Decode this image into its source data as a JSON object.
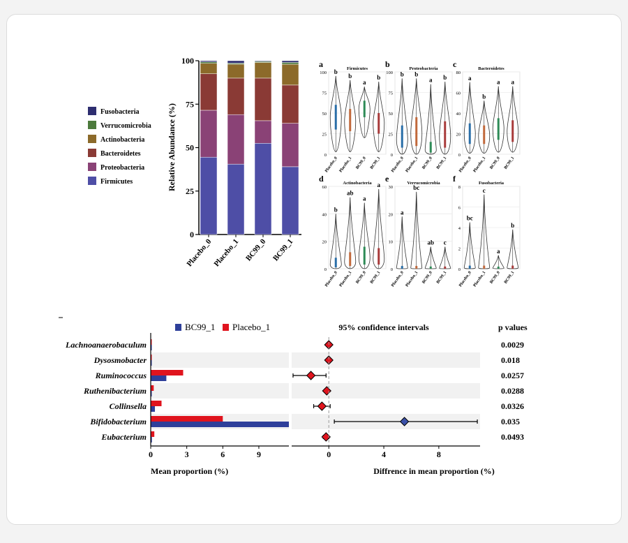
{
  "chart_data": [
    {
      "panel": "stacked",
      "type": "bar",
      "ylabel": "Relative Abundance (%)",
      "ylim": [
        0,
        100
      ],
      "yticks": [
        0,
        25,
        50,
        75,
        100
      ],
      "categories": [
        "Placebo_0",
        "Placebo_1",
        "BC99_0",
        "BC99_1"
      ],
      "series": [
        {
          "name": "Firmicutes",
          "color": "#4e4ea6",
          "values": [
            44.5,
            40.5,
            52.5,
            39
          ]
        },
        {
          "name": "Proteobacteria",
          "color": "#8a4276",
          "values": [
            27,
            28.5,
            13,
            25
          ]
        },
        {
          "name": "Bacteroidetes",
          "color": "#8a3a35",
          "values": [
            21,
            21,
            24.5,
            22
          ]
        },
        {
          "name": "Actinobacteria",
          "color": "#8c6a2a",
          "values": [
            6,
            8,
            9,
            12
          ]
        },
        {
          "name": "Verrucomicrobia",
          "color": "#4c7a3c",
          "values": [
            0.8,
            0.6,
            0.6,
            1
          ]
        },
        {
          "name": "Fusobacteria",
          "color": "#2e2e70",
          "values": [
            0.7,
            1.4,
            0.4,
            1
          ]
        }
      ],
      "legend_order": [
        "Fusobacteria",
        "Verrucomicrobia",
        "Actinobacteria",
        "Bacteroidetes",
        "Proteobacteria",
        "Firmicutes"
      ]
    },
    {
      "panel": "violin",
      "type": "violin",
      "categories": [
        "Placebo_0",
        "Placebo_1",
        "BC99_0",
        "BC99_1"
      ],
      "series_colors": [
        "#2a6fa8",
        "#c1693b",
        "#2e8b57",
        "#a83a3a"
      ],
      "subplots": [
        {
          "letter": "a",
          "title": "Firmicutes",
          "ylim": [
            0,
            100
          ],
          "yticks": [
            0,
            25,
            50,
            75,
            100
          ],
          "letters": [
            "b",
            "b",
            "a",
            "b"
          ],
          "medians": [
            45,
            40,
            55,
            38
          ],
          "q1": [
            30,
            28,
            45,
            25
          ],
          "q3": [
            60,
            55,
            65,
            50
          ],
          "max": [
            95,
            90,
            82,
            88
          ],
          "min": [
            3,
            3,
            20,
            3
          ]
        },
        {
          "letter": "b",
          "title": "Proteobacteria",
          "ylim": [
            0,
            100
          ],
          "yticks": [
            0,
            25,
            50,
            75,
            100
          ],
          "letters": [
            "b",
            "b",
            "a",
            "b"
          ],
          "medians": [
            18,
            25,
            5,
            22
          ],
          "q1": [
            8,
            10,
            2,
            8
          ],
          "q3": [
            35,
            45,
            15,
            40
          ],
          "max": [
            92,
            92,
            85,
            88
          ],
          "min": [
            0,
            0,
            0,
            0
          ]
        },
        {
          "letter": "c",
          "title": "Bacteroidetes",
          "ylim": [
            0,
            80
          ],
          "yticks": [
            0,
            20,
            40,
            60,
            80
          ],
          "letters": [
            "a",
            "b",
            "a",
            "a"
          ],
          "medians": [
            20,
            18,
            25,
            22
          ],
          "q1": [
            10,
            10,
            14,
            12
          ],
          "q3": [
            30,
            28,
            35,
            33
          ],
          "max": [
            70,
            52,
            66,
            66
          ],
          "min": [
            1,
            1,
            2,
            2
          ]
        },
        {
          "letter": "d",
          "title": "Actinobacteria",
          "ylim": [
            0,
            60
          ],
          "yticks": [
            0,
            20,
            40,
            60
          ],
          "letters": [
            "b",
            "ab",
            "a",
            "a"
          ],
          "medians": [
            3,
            5,
            8,
            7
          ],
          "q1": [
            1,
            2,
            3,
            3
          ],
          "q3": [
            8,
            12,
            16,
            15
          ],
          "max": [
            40,
            52,
            48,
            58
          ],
          "min": [
            0,
            0,
            0,
            0
          ]
        },
        {
          "letter": "e",
          "title": "Verrucomicrobia",
          "ylim": [
            0,
            30
          ],
          "yticks": [
            0,
            10,
            20,
            30
          ],
          "letters": [
            "a",
            "bc",
            "ab",
            "c"
          ],
          "medians": [
            0.3,
            0.3,
            0.2,
            0.2
          ],
          "q1": [
            0,
            0,
            0,
            0
          ],
          "q3": [
            1,
            1,
            0.8,
            0.8
          ],
          "max": [
            19,
            28,
            8,
            8
          ],
          "min": [
            0,
            0,
            0,
            0
          ]
        },
        {
          "letter": "f",
          "title": "Fusobacteria",
          "ylim": [
            0,
            8
          ],
          "yticks": [
            0,
            2,
            4,
            6,
            8
          ],
          "letters": [
            "bc",
            "c",
            "a",
            "b"
          ],
          "medians": [
            0.1,
            0.1,
            0.05,
            0.1
          ],
          "q1": [
            0,
            0,
            0,
            0
          ],
          "q3": [
            0.3,
            0.3,
            0.2,
            0.3
          ],
          "max": [
            4.5,
            7.2,
            1.3,
            3.8
          ],
          "min": [
            0,
            0,
            0,
            0
          ]
        }
      ]
    },
    {
      "panel": "extended_error_bar",
      "type": "bar",
      "genera": [
        "Lachnoanaerobaculum",
        "Dysosmobacter",
        "Ruminococcus",
        "Ruthenibacterium",
        "Collinsella",
        "Bifidobacterium",
        "Eubacterium"
      ],
      "legend": [
        {
          "name": "BC99_1",
          "color": "#2e3f9a"
        },
        {
          "name": "Placebo_1",
          "color": "#e0141e"
        }
      ],
      "bc99_values": [
        0.02,
        0.02,
        1.3,
        0.05,
        0.35,
        11.5,
        0.1
      ],
      "placebo_values": [
        0.02,
        0.02,
        2.7,
        0.25,
        0.9,
        6.0,
        0.3
      ],
      "xlabel_left": "Mean proportion (%)",
      "xticks_left": [
        0,
        3,
        6,
        9
      ],
      "xlim_left": [
        0,
        11.5
      ],
      "ci_title": "95% confidence intervals",
      "xlabel_right": "Diffrence in mean proportion (%)",
      "xticks_right": [
        0,
        4,
        8
      ],
      "xlim_right": [
        -2.7,
        11
      ],
      "differences": [
        0,
        0,
        -1.3,
        -0.15,
        -0.5,
        5.5,
        -0.2
      ],
      "ci_low": [
        0,
        0,
        -2.6,
        -0.3,
        -1.1,
        0.4,
        -0.4
      ],
      "ci_high": [
        0,
        0,
        -0.2,
        0,
        0.1,
        10.8,
        0
      ],
      "diamond_colors": [
        "#e0141e",
        "#e0141e",
        "#e0141e",
        "#e0141e",
        "#e0141e",
        "#3a50a8",
        "#e0141e"
      ],
      "pvalues_title": "p values",
      "pvalues": [
        "0.0029",
        "0.018",
        "0.0257",
        "0.0288",
        "0.0326",
        "0.035",
        "0.0493"
      ]
    }
  ]
}
